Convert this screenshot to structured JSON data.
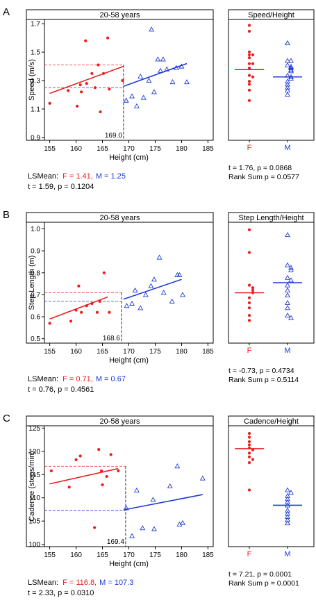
{
  "colors": {
    "female": "#ee1c1c",
    "male": "#1f3ad6",
    "axis": "#000000"
  },
  "chart_data": [
    {
      "panel": "A",
      "type": "scatter",
      "title": "20-58 years",
      "xlabel": "Height (cm)",
      "ylabel": "Speed (m/s)",
      "xlim": [
        154,
        186
      ],
      "ylim": [
        0.88,
        1.73
      ],
      "xticks": [
        "155",
        "160",
        "165",
        "170",
        "175",
        "180",
        "185"
      ],
      "yticks": [
        {
          "v": 0.9,
          "label": "0.9"
        },
        {
          "v": 1.1,
          "label": "1.1"
        },
        {
          "v": 1.3,
          "label": "1.3"
        },
        {
          "v": 1.5,
          "label": "1.5"
        },
        {
          "v": 1.7,
          "label": "1.7"
        }
      ],
      "cutoff": {
        "x": 169.0,
        "label": "169.0"
      },
      "series": [
        {
          "name": "F",
          "marker": "dot",
          "color": "#ee1c1c",
          "x": [
            155,
            158.5,
            160.2,
            160.8,
            161,
            161.8,
            162,
            163,
            163.6,
            164.2,
            164.6,
            165.2,
            166,
            166.3,
            168.8
          ],
          "y": [
            1.14,
            1.23,
            1.12,
            1.27,
            1.22,
            1.58,
            1.28,
            1.35,
            1.25,
            1.41,
            1.08,
            1.35,
            1.6,
            1.24,
            1.3
          ],
          "fit": [
            [
              155,
              1.21
            ],
            [
              169,
              1.4
            ]
          ]
        },
        {
          "name": "M",
          "marker": "triangle",
          "color": "#1f3ad6",
          "x": [
            169.5,
            170.6,
            171.5,
            172.2,
            172.8,
            173.8,
            174.3,
            174.8,
            175.5,
            176,
            176.5,
            177.2,
            178.3,
            179,
            180,
            181
          ],
          "y": [
            1.16,
            1.19,
            1.12,
            1.33,
            1.18,
            1.3,
            1.66,
            1.22,
            1.45,
            1.37,
            1.45,
            1.38,
            1.29,
            1.39,
            1.4,
            1.29
          ],
          "fit": [
            [
              169,
              1.26
            ],
            [
              181,
              1.42
            ]
          ]
        }
      ],
      "lsmean": {
        "F": 1.41,
        "M": 1.25
      },
      "annotation_label": "LSMean:",
      "lsmean_f_text": "F = 1.41,",
      "lsmean_m_text": "M = 1.25",
      "test_text": "t = 1.59, p = 0.1204",
      "side": {
        "title": "Speed/Height",
        "categories": [
          "F",
          "M"
        ],
        "ylim": [
          0.82,
          1.23
        ],
        "F": [
          1.21,
          1.19,
          1.12,
          1.11,
          1.11,
          1.1,
          1.08,
          1.08,
          1.065,
          1.04,
          1.035,
          1.02,
          1.01,
          0.99,
          0.955
        ],
        "M": [
          1.15,
          1.09,
          1.09,
          1.075,
          1.07,
          1.065,
          1.06,
          1.055,
          1.04,
          1.035,
          1.03,
          1.02,
          1.01,
          1.0,
          0.99,
          0.975
        ],
        "F_mean": 1.06,
        "M_mean": 1.035,
        "stats1": "t = 1.76, p = 0.0868",
        "stats2": "Rank Sum p = 0.0577"
      }
    },
    {
      "panel": "B",
      "type": "scatter",
      "title": "20-58 years",
      "xlabel": "Height (cm)",
      "ylabel": "Step Length (m)",
      "xlim": [
        154,
        186
      ],
      "ylim": [
        0.48,
        1.03
      ],
      "xticks": [
        "155",
        "160",
        "165",
        "170",
        "175",
        "180",
        "185"
      ],
      "yticks": [
        {
          "v": 0.5,
          "label": "0.5"
        },
        {
          "v": 0.6,
          "label": "0.6"
        },
        {
          "v": 0.7,
          "label": "0.7"
        },
        {
          "v": 0.8,
          "label": "0.8"
        },
        {
          "v": 0.9,
          "label": "0.9"
        },
        {
          "v": 1.0,
          "label": "1.0"
        }
      ],
      "cutoff": {
        "x": 168.6,
        "label": "168.6"
      },
      "series": [
        {
          "name": "F",
          "marker": "dot",
          "color": "#ee1c1c",
          "x": [
            155,
            159,
            160,
            160.5,
            161,
            162,
            163,
            164,
            164.5,
            165.3,
            166.3
          ],
          "y": [
            0.57,
            0.58,
            0.63,
            0.74,
            0.62,
            0.65,
            0.66,
            0.62,
            0.67,
            0.8,
            0.62
          ],
          "fit": [
            [
              155,
              0.59
            ],
            [
              166,
              0.69
            ]
          ]
        },
        {
          "name": "M",
          "marker": "triangle",
          "color": "#1f3ad6",
          "x": [
            169.6,
            170.6,
            171.2,
            172.2,
            173.2,
            174.2,
            174.8,
            175.8,
            176.6,
            178.2,
            179.2,
            179.6,
            180.2
          ],
          "y": [
            0.65,
            0.66,
            0.72,
            0.64,
            0.7,
            0.74,
            0.77,
            0.87,
            0.71,
            0.67,
            0.79,
            0.79,
            0.7
          ],
          "fit": [
            [
              169,
              0.68
            ],
            [
              180,
              0.77
            ]
          ]
        }
      ],
      "lsmean": {
        "F": 0.71,
        "M": 0.67
      },
      "annotation_label": "LSMean:",
      "lsmean_f_text": "F = 0.71,",
      "lsmean_m_text": "M = 0.67",
      "test_text": "t = 0.76, p = 0.4561",
      "side": {
        "title": "Step Length/Height",
        "categories": [
          "F",
          "M"
        ],
        "ylim": [
          0.32,
          0.56
        ],
        "F": [
          0.545,
          0.5,
          0.435,
          0.43,
          0.425,
          0.42,
          0.41,
          0.4,
          0.39,
          0.375,
          0.365
        ],
        "M": [
          0.535,
          0.475,
          0.47,
          0.465,
          0.45,
          0.445,
          0.435,
          0.425,
          0.415,
          0.4,
          0.39,
          0.375,
          0.37
        ],
        "F_mean": 0.42,
        "M_mean": 0.44,
        "stats1": "t = -0.73, p = 0.4734",
        "stats2": "Rank Sum p = 0.5114"
      }
    },
    {
      "panel": "C",
      "type": "scatter",
      "title": "20-58 years",
      "xlabel": "Height (cm)",
      "ylabel": "Cadence (steps/min)",
      "xlim": [
        154,
        186
      ],
      "ylim": [
        99.5,
        125.5
      ],
      "xticks": [
        "155",
        "160",
        "165",
        "170",
        "175",
        "180",
        "185"
      ],
      "yticks": [
        {
          "v": 100,
          "label": "100"
        },
        {
          "v": 105,
          "label": "105"
        },
        {
          "v": 110,
          "label": "110"
        },
        {
          "v": 115,
          "label": "115"
        },
        {
          "v": 120,
          "label": "120"
        },
        {
          "v": 125,
          "label": "125"
        }
      ],
      "cutoff": {
        "x": 169.4,
        "label": "169.4"
      },
      "series": [
        {
          "name": "F",
          "marker": "dot",
          "color": "#ee1c1c",
          "x": [
            155.3,
            158.7,
            160,
            160.8,
            163.5,
            164.3,
            164.8,
            165,
            165.8,
            166.6,
            168
          ],
          "y": [
            115.8,
            112.3,
            118.2,
            119,
            103.6,
            120.4,
            115.8,
            112.8,
            114.6,
            119.3,
            115.8
          ],
          "fit": [
            [
              155,
              113.0
            ],
            [
              168,
              116.3
            ]
          ]
        },
        {
          "name": "M",
          "marker": "triangle",
          "color": "#1f3ad6",
          "x": [
            169.5,
            170.6,
            171.5,
            172.6,
            174.6,
            174.8,
            177.8,
            179.2,
            179.6,
            180.2,
            184
          ],
          "y": [
            107.8,
            101.8,
            111.6,
            103.5,
            109.6,
            103.3,
            112.5,
            116.8,
            104.3,
            104.6,
            114.2
          ],
          "fit": [
            [
              169,
              107.4
            ],
            [
              184,
              110.7
            ]
          ]
        }
      ],
      "lsmean": {
        "F": 116.8,
        "M": 107.3
      },
      "annotation_label": "LSMean:",
      "lsmean_f_text": "F = 116.8,",
      "lsmean_m_text": "M = 107.3",
      "test_text": "t = 2.33, p = 0.0310",
      "side": {
        "title": "Cadence/Height",
        "categories": [
          "F",
          "M"
        ],
        "ylim": [
          0.575,
          0.765
        ],
        "F": [
          0.753,
          0.747,
          0.74,
          0.735,
          0.73,
          0.727,
          0.722,
          0.716,
          0.712,
          0.707,
          0.664
        ],
        "M": [
          0.664,
          0.66,
          0.655,
          0.65,
          0.645,
          0.64,
          0.632,
          0.627,
          0.622,
          0.617,
          0.612
        ],
        "F_mean": 0.729,
        "M_mean": 0.64,
        "stats1": "t = 7.21, p = 0.0001",
        "stats2": "Rank Sum p = 0.0001"
      }
    }
  ]
}
